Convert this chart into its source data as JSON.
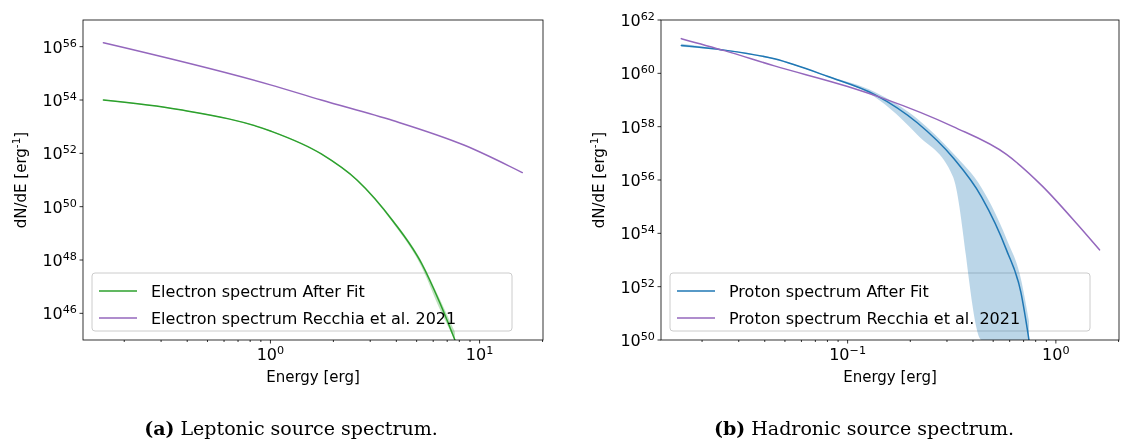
{
  "chart_data": [
    {
      "type": "line",
      "title": "(a) Leptonic source spectrum.",
      "xlabel": "Energy [erg]",
      "ylabel": "dN/dE [erg$^{-1}$]",
      "log": "xy",
      "grid": false,
      "legend": "bottom left",
      "xlim": [
        0.127,
        20.1
      ],
      "xticks": [
        {
          "value": 0.2,
          "label": null
        },
        {
          "value": 0.3,
          "label": null
        },
        {
          "value": 0.4,
          "label": null
        },
        {
          "value": 0.5,
          "label": null
        },
        {
          "value": 0.6,
          "label": null
        },
        {
          "value": 0.7,
          "label": null
        },
        {
          "value": 0.8,
          "label": null
        },
        {
          "value": 0.9,
          "label": null
        },
        {
          "value": 1,
          "label": "10$^{0}$"
        },
        {
          "value": 2,
          "label": null
        },
        {
          "value": 3,
          "label": null
        },
        {
          "value": 4,
          "label": null
        },
        {
          "value": 5,
          "label": null
        },
        {
          "value": 6,
          "label": null
        },
        {
          "value": 7,
          "label": null
        },
        {
          "value": 8,
          "label": null
        },
        {
          "value": 9,
          "label": null
        },
        {
          "value": 10,
          "label": "10$^{1}$"
        },
        {
          "value": 20,
          "label": null
        }
      ],
      "ylim": [
        1e+45,
        1e+57
      ],
      "yticks": [
        {
          "value": 1e+46,
          "label": "10$^{46}$"
        },
        {
          "value": 1e+48,
          "label": "10$^{48}$"
        },
        {
          "value": 1e+50,
          "label": "10$^{50}$"
        },
        {
          "value": 1e+52,
          "label": "10$^{52}$"
        },
        {
          "value": 1e+54,
          "label": "10$^{54}$"
        },
        {
          "value": 1e+56,
          "label": "10$^{56}$"
        }
      ],
      "series": [
        {
          "name": "Electron spectrum After Fit",
          "color": "#2ca02c",
          "x": [
            0.159,
            0.364,
            1,
            1.75,
            2.6,
            3.85,
            5.28,
            6.44,
            7.62
          ],
          "values": [
            1e+54,
            4.4e+53,
            6.9e+52,
            9.5e+51,
            9.8e+50,
            2.9e+49,
            7.4e+47,
            2.6e+46,
            1e+45
          ],
          "lower": [
            9.5e+53,
            4.2e+53,
            6.6e+52,
            9e+51,
            9e+50,
            2.5e+49,
            5.5e+47,
            1.5e+46,
            1e+45
          ],
          "upper": [
            1.05e+54,
            4.6e+53,
            7.2e+52,
            1e+52,
            1.05e+51,
            3.3e+49,
            9e+47,
            3.5e+46,
            2e+45
          ]
        },
        {
          "name": "Electron spectrum Recchia et al. 2021",
          "color": "#9467bd",
          "x": [
            0.159,
            1,
            1.75,
            3.85,
            8.47,
            16
          ],
          "values": [
            1.4e+56,
            3.7e+54,
            1e+54,
            1.7e+53,
            2e+52,
            1.9e+51
          ]
        }
      ]
    },
    {
      "type": "line",
      "title": "(b) Hadronic source spectrum.",
      "xlabel": "Energy [erg]",
      "ylabel": "dN/dE [erg$^{-1}$]",
      "log": "xy",
      "grid": false,
      "legend": "bottom left",
      "xlim": [
        0.0127,
        2.01
      ],
      "xticks": [
        {
          "value": 0.02,
          "label": null
        },
        {
          "value": 0.03,
          "label": null
        },
        {
          "value": 0.04,
          "label": null
        },
        {
          "value": 0.05,
          "label": null
        },
        {
          "value": 0.06,
          "label": null
        },
        {
          "value": 0.07,
          "label": null
        },
        {
          "value": 0.08,
          "label": null
        },
        {
          "value": 0.09,
          "label": null
        },
        {
          "value": 0.1,
          "label": "10$^{−1}$"
        },
        {
          "value": 0.2,
          "label": null
        },
        {
          "value": 0.3,
          "label": null
        },
        {
          "value": 0.4,
          "label": null
        },
        {
          "value": 0.5,
          "label": null
        },
        {
          "value": 0.6,
          "label": null
        },
        {
          "value": 0.7,
          "label": null
        },
        {
          "value": 0.8,
          "label": null
        },
        {
          "value": 0.9,
          "label": null
        },
        {
          "value": 1,
          "label": "10$^{0}$"
        },
        {
          "value": 2,
          "label": null
        }
      ],
      "ylim": [
        1e+50,
        1e+62
      ],
      "yticks": [
        {
          "value": 1e+50,
          "label": "10$^{50}$"
        },
        {
          "value": 1e+52,
          "label": "10$^{52}$"
        },
        {
          "value": 1e+54,
          "label": "10$^{54}$"
        },
        {
          "value": 1e+56,
          "label": "10$^{56}$"
        },
        {
          "value": 1e+58,
          "label": "10$^{58}$"
        },
        {
          "value": 1e+60,
          "label": "10$^{60}$"
        },
        {
          "value": 1e+62,
          "label": "10$^{62}$"
        }
      ],
      "series": [
        {
          "name": "Proton spectrum After Fit",
          "color": "#1f77b4",
          "x": [
            0.0159,
            0.0256,
            0.0445,
            0.0805,
            0.135,
            0.216,
            0.321,
            0.44,
            0.579,
            0.679,
            0.743
          ],
          "values": [
            1.1e+61,
            7.4e+60,
            3.5e+60,
            7.6e+59,
            1.6e+59,
            1.4e+58,
            6.8e+56,
            2.3e+55,
            2.4e+53,
            6.2e+51,
            1e+50
          ],
          "lower": [
            1e+61,
            7e+60,
            3.3e+60,
            7.1e+59,
            1.3e+59,
            5e+57,
            1.3e+56,
            1e+50,
            1e+50,
            1e+50,
            1e+50
          ],
          "upper": [
            1.3e+61,
            7.8e+60,
            3.7e+60,
            8.1e+59,
            2e+59,
            2e+58,
            1e+57,
            5e+55,
            6.3e+53,
            2e+52,
            5e+50
          ]
        },
        {
          "name": "Proton spectrum Recchia et al. 2021",
          "color": "#9467bd",
          "x": [
            0.0159,
            0.0256,
            0.0445,
            0.1,
            0.146,
            0.321,
            0.579,
            0.861,
            1.28,
            1.62
          ],
          "values": [
            2e+61,
            7.1e+60,
            1.9e+60,
            3.2e+59,
            1.2e+59,
            1e+58,
            9.1e+56,
            5.9e+55,
            2e+54,
            2.4e+53
          ]
        }
      ]
    }
  ]
}
